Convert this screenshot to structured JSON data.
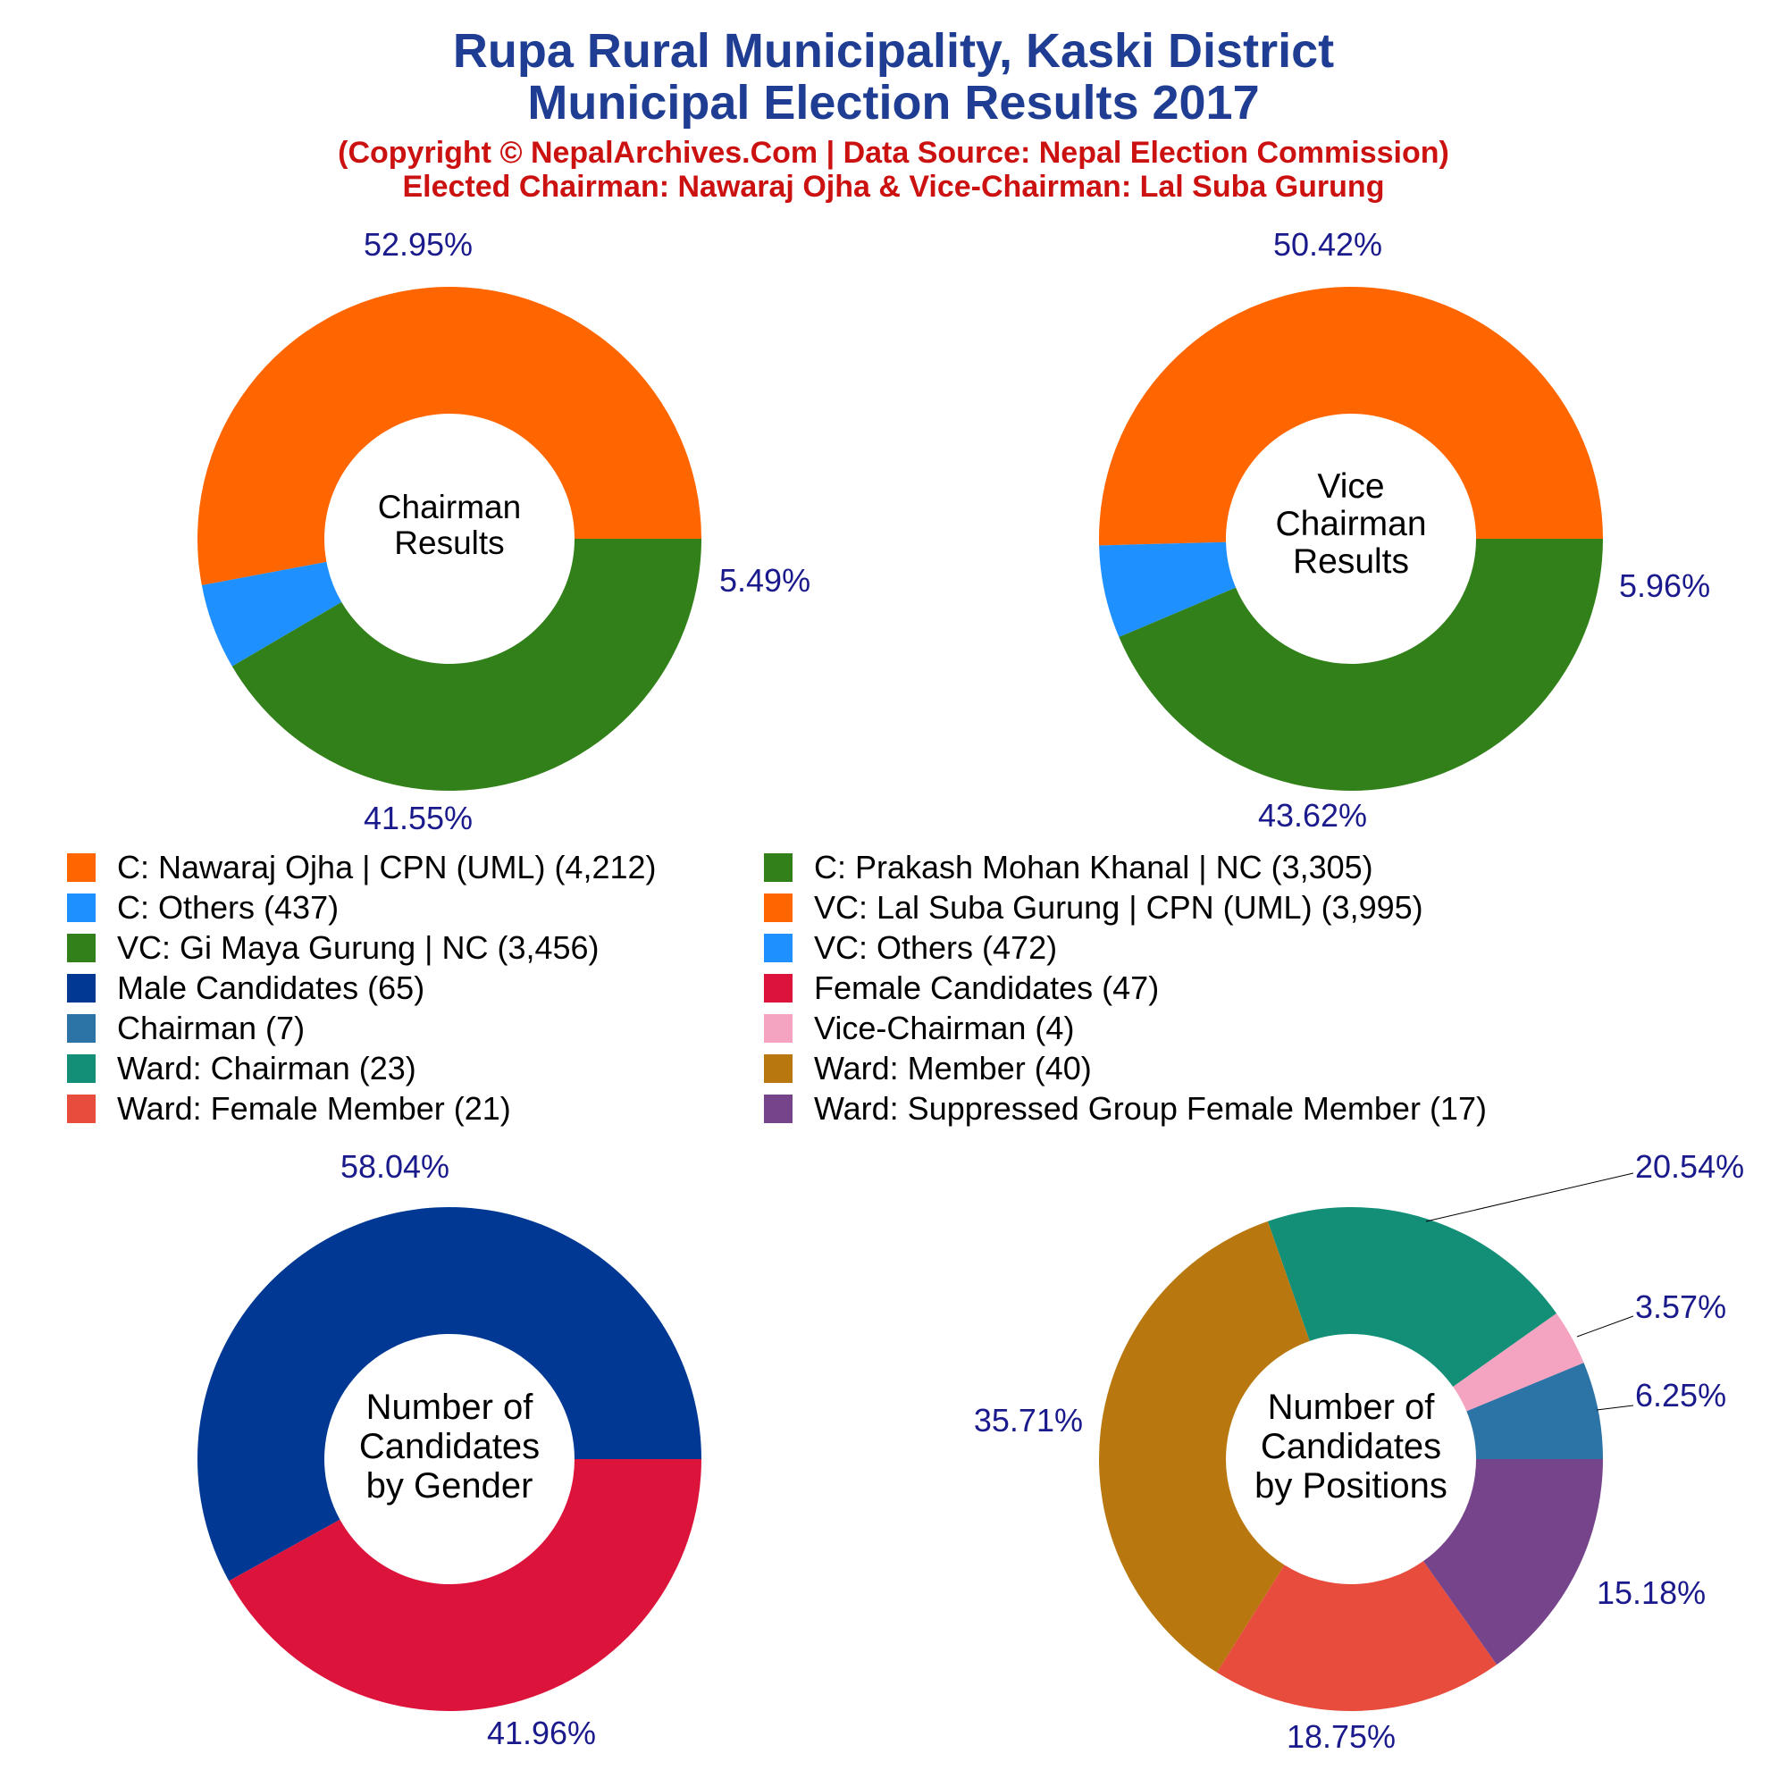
{
  "header": {
    "title_line1": "Rupa Rural Municipality, Kaski District",
    "title_line2": "Municipal Election Results 2017",
    "subtitle_line1": "(Copyright © NepalArchives.Com | Data Source: Nepal Election Commission)",
    "subtitle_line2": "Elected Chairman: Nawaraj Ojha & Vice-Chairman: Lal Suba Gurung"
  },
  "colors": {
    "title": "#1F3E93",
    "subtitle": "#CC1111",
    "pct_label": "#1A1A8C"
  },
  "legend": [
    {
      "label": "C: Nawaraj Ojha | CPN (UML) (4,212)",
      "color": "#FF6600"
    },
    {
      "label": "C: Prakash Mohan Khanal | NC (3,305)",
      "color": "#318019"
    },
    {
      "label": "C: Others (437)",
      "color": "#1E90FF"
    },
    {
      "label": "VC: Lal Suba Gurung | CPN (UML) (3,995)",
      "color": "#FF6600"
    },
    {
      "label": "VC: Gi Maya Gurung | NC (3,456)",
      "color": "#318019"
    },
    {
      "label": "VC: Others (472)",
      "color": "#1E90FF"
    },
    {
      "label": "Male Candidates (65)",
      "color": "#003893"
    },
    {
      "label": "Female Candidates (47)",
      "color": "#DC143C"
    },
    {
      "label": "Chairman (7)",
      "color": "#2C73A6"
    },
    {
      "label": "Vice-Chairman (4)",
      "color": "#F4A3C0"
    },
    {
      "label": "Ward: Chairman (23)",
      "color": "#138F78"
    },
    {
      "label": "Ward: Member (40)",
      "color": "#B8780F"
    },
    {
      "label": "Ward: Female Member (21)",
      "color": "#E74C3C"
    },
    {
      "label": "Ward: Suppressed Group Female Member (17)",
      "color": "#76448A"
    }
  ],
  "chart_data": [
    {
      "type": "pie",
      "donut": true,
      "center_label": [
        "Chairman",
        "Results"
      ],
      "slices": [
        {
          "name": "C: Nawaraj Ojha | CPN (UML)",
          "value": 4212,
          "pct_label": "52.95%",
          "color": "#FF6600"
        },
        {
          "name": "C: Others",
          "value": 437,
          "pct_label": "5.49%",
          "color": "#1E90FF"
        },
        {
          "name": "C: Prakash Mohan Khanal | NC",
          "value": 3305,
          "pct_label": "41.55%",
          "color": "#318019"
        }
      ]
    },
    {
      "type": "pie",
      "donut": true,
      "center_label": [
        "Vice",
        "Chairman",
        "Results"
      ],
      "slices": [
        {
          "name": "VC: Lal Suba Gurung | CPN (UML)",
          "value": 3995,
          "pct_label": "50.42%",
          "color": "#FF6600"
        },
        {
          "name": "VC: Others",
          "value": 472,
          "pct_label": "5.96%",
          "color": "#1E90FF"
        },
        {
          "name": "VC: Gi Maya Gurung | NC",
          "value": 3456,
          "pct_label": "43.62%",
          "color": "#318019"
        }
      ]
    },
    {
      "type": "pie",
      "donut": true,
      "center_label": [
        "Number of",
        "Candidates",
        "by Gender"
      ],
      "slices": [
        {
          "name": "Male Candidates",
          "value": 65,
          "pct_label": "58.04%",
          "color": "#003893"
        },
        {
          "name": "Female Candidates",
          "value": 47,
          "pct_label": "41.96%",
          "color": "#DC143C"
        }
      ]
    },
    {
      "type": "pie",
      "donut": true,
      "center_label": [
        "Number of",
        "Candidates",
        "by Positions"
      ],
      "slices": [
        {
          "name": "Chairman",
          "value": 7,
          "pct_label": "6.25%",
          "color": "#2C73A6"
        },
        {
          "name": "Vice-Chairman",
          "value": 4,
          "pct_label": "3.57%",
          "color": "#F4A3C0"
        },
        {
          "name": "Ward: Chairman",
          "value": 23,
          "pct_label": "20.54%",
          "color": "#138F78"
        },
        {
          "name": "Ward: Member",
          "value": 40,
          "pct_label": "35.71%",
          "color": "#B8780F"
        },
        {
          "name": "Ward: Female Member",
          "value": 21,
          "pct_label": "18.75%",
          "color": "#E74C3C"
        },
        {
          "name": "Ward: Suppressed Group Female Member",
          "value": 17,
          "pct_label": "15.18%",
          "color": "#76448A"
        }
      ]
    }
  ]
}
